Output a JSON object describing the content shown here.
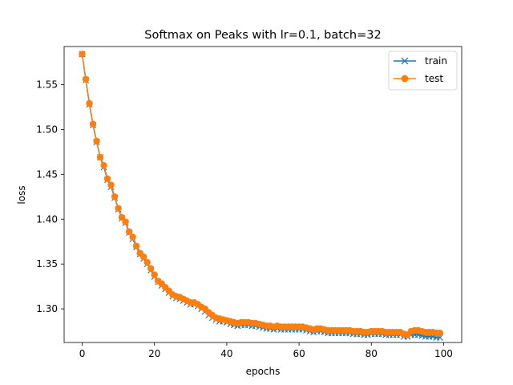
{
  "chart_data": {
    "type": "line",
    "title": "Softmax on Peaks with lr=0.1, batch=32",
    "xlabel": "epochs",
    "ylabel": "loss",
    "xlim": [
      -5,
      105
    ],
    "ylim": [
      1.2625,
      1.5925
    ],
    "xticks": [
      0,
      20,
      40,
      60,
      80,
      100
    ],
    "yticks": [
      1.3,
      1.35,
      1.4,
      1.45,
      1.5,
      1.55
    ],
    "legend_position": "upper right",
    "grid": false,
    "x": [
      0,
      1,
      2,
      3,
      4,
      5,
      6,
      7,
      8,
      9,
      10,
      11,
      12,
      13,
      14,
      15,
      16,
      17,
      18,
      19,
      20,
      21,
      22,
      23,
      24,
      25,
      26,
      27,
      28,
      29,
      30,
      31,
      32,
      33,
      34,
      35,
      36,
      37,
      38,
      39,
      40,
      41,
      42,
      43,
      44,
      45,
      46,
      47,
      48,
      49,
      50,
      51,
      52,
      53,
      54,
      55,
      56,
      57,
      58,
      59,
      60,
      61,
      62,
      63,
      64,
      65,
      66,
      67,
      68,
      69,
      70,
      71,
      72,
      73,
      74,
      75,
      76,
      77,
      78,
      79,
      80,
      81,
      82,
      83,
      84,
      85,
      86,
      87,
      88,
      89,
      90,
      91,
      92,
      93,
      94,
      95,
      96,
      97,
      98,
      99
    ],
    "series": [
      {
        "name": "train",
        "color": "#1f77b4",
        "marker": "x",
        "values": [
          1.584,
          1.555,
          1.528,
          1.505,
          1.486,
          1.469,
          1.458,
          1.444,
          1.436,
          1.424,
          1.411,
          1.401,
          1.396,
          1.385,
          1.378,
          1.369,
          1.361,
          1.356,
          1.35,
          1.343,
          1.336,
          1.33,
          1.326,
          1.322,
          1.318,
          1.314,
          1.312,
          1.311,
          1.309,
          1.307,
          1.305,
          1.305,
          1.303,
          1.3,
          1.297,
          1.293,
          1.29,
          1.288,
          1.286,
          1.286,
          1.285,
          1.283,
          1.282,
          1.281,
          1.282,
          1.282,
          1.282,
          1.281,
          1.281,
          1.28,
          1.279,
          1.278,
          1.278,
          1.277,
          1.278,
          1.277,
          1.277,
          1.277,
          1.277,
          1.277,
          1.277,
          1.277,
          1.276,
          1.275,
          1.274,
          1.275,
          1.275,
          1.274,
          1.273,
          1.273,
          1.273,
          1.273,
          1.273,
          1.273,
          1.273,
          1.272,
          1.272,
          1.272,
          1.271,
          1.271,
          1.272,
          1.272,
          1.272,
          1.272,
          1.271,
          1.271,
          1.271,
          1.271,
          1.271,
          1.269,
          1.269,
          1.271,
          1.271,
          1.271,
          1.27,
          1.269,
          1.269,
          1.269,
          1.268,
          1.268
        ]
      },
      {
        "name": "test",
        "color": "#ff7f0e",
        "marker": "o",
        "values": [
          1.584,
          1.556,
          1.529,
          1.506,
          1.487,
          1.469,
          1.46,
          1.445,
          1.438,
          1.425,
          1.412,
          1.402,
          1.397,
          1.386,
          1.38,
          1.37,
          1.362,
          1.358,
          1.352,
          1.345,
          1.338,
          1.331,
          1.328,
          1.324,
          1.32,
          1.316,
          1.314,
          1.313,
          1.311,
          1.309,
          1.307,
          1.307,
          1.305,
          1.302,
          1.3,
          1.296,
          1.293,
          1.29,
          1.289,
          1.288,
          1.287,
          1.286,
          1.285,
          1.284,
          1.285,
          1.285,
          1.285,
          1.284,
          1.284,
          1.283,
          1.282,
          1.281,
          1.281,
          1.28,
          1.281,
          1.28,
          1.28,
          1.28,
          1.28,
          1.28,
          1.28,
          1.28,
          1.279,
          1.278,
          1.277,
          1.278,
          1.278,
          1.277,
          1.276,
          1.276,
          1.276,
          1.276,
          1.276,
          1.276,
          1.276,
          1.275,
          1.275,
          1.275,
          1.274,
          1.274,
          1.275,
          1.275,
          1.275,
          1.275,
          1.274,
          1.274,
          1.274,
          1.274,
          1.274,
          1.272,
          1.271,
          1.275,
          1.276,
          1.276,
          1.275,
          1.274,
          1.274,
          1.274,
          1.273,
          1.273
        ]
      }
    ]
  }
}
